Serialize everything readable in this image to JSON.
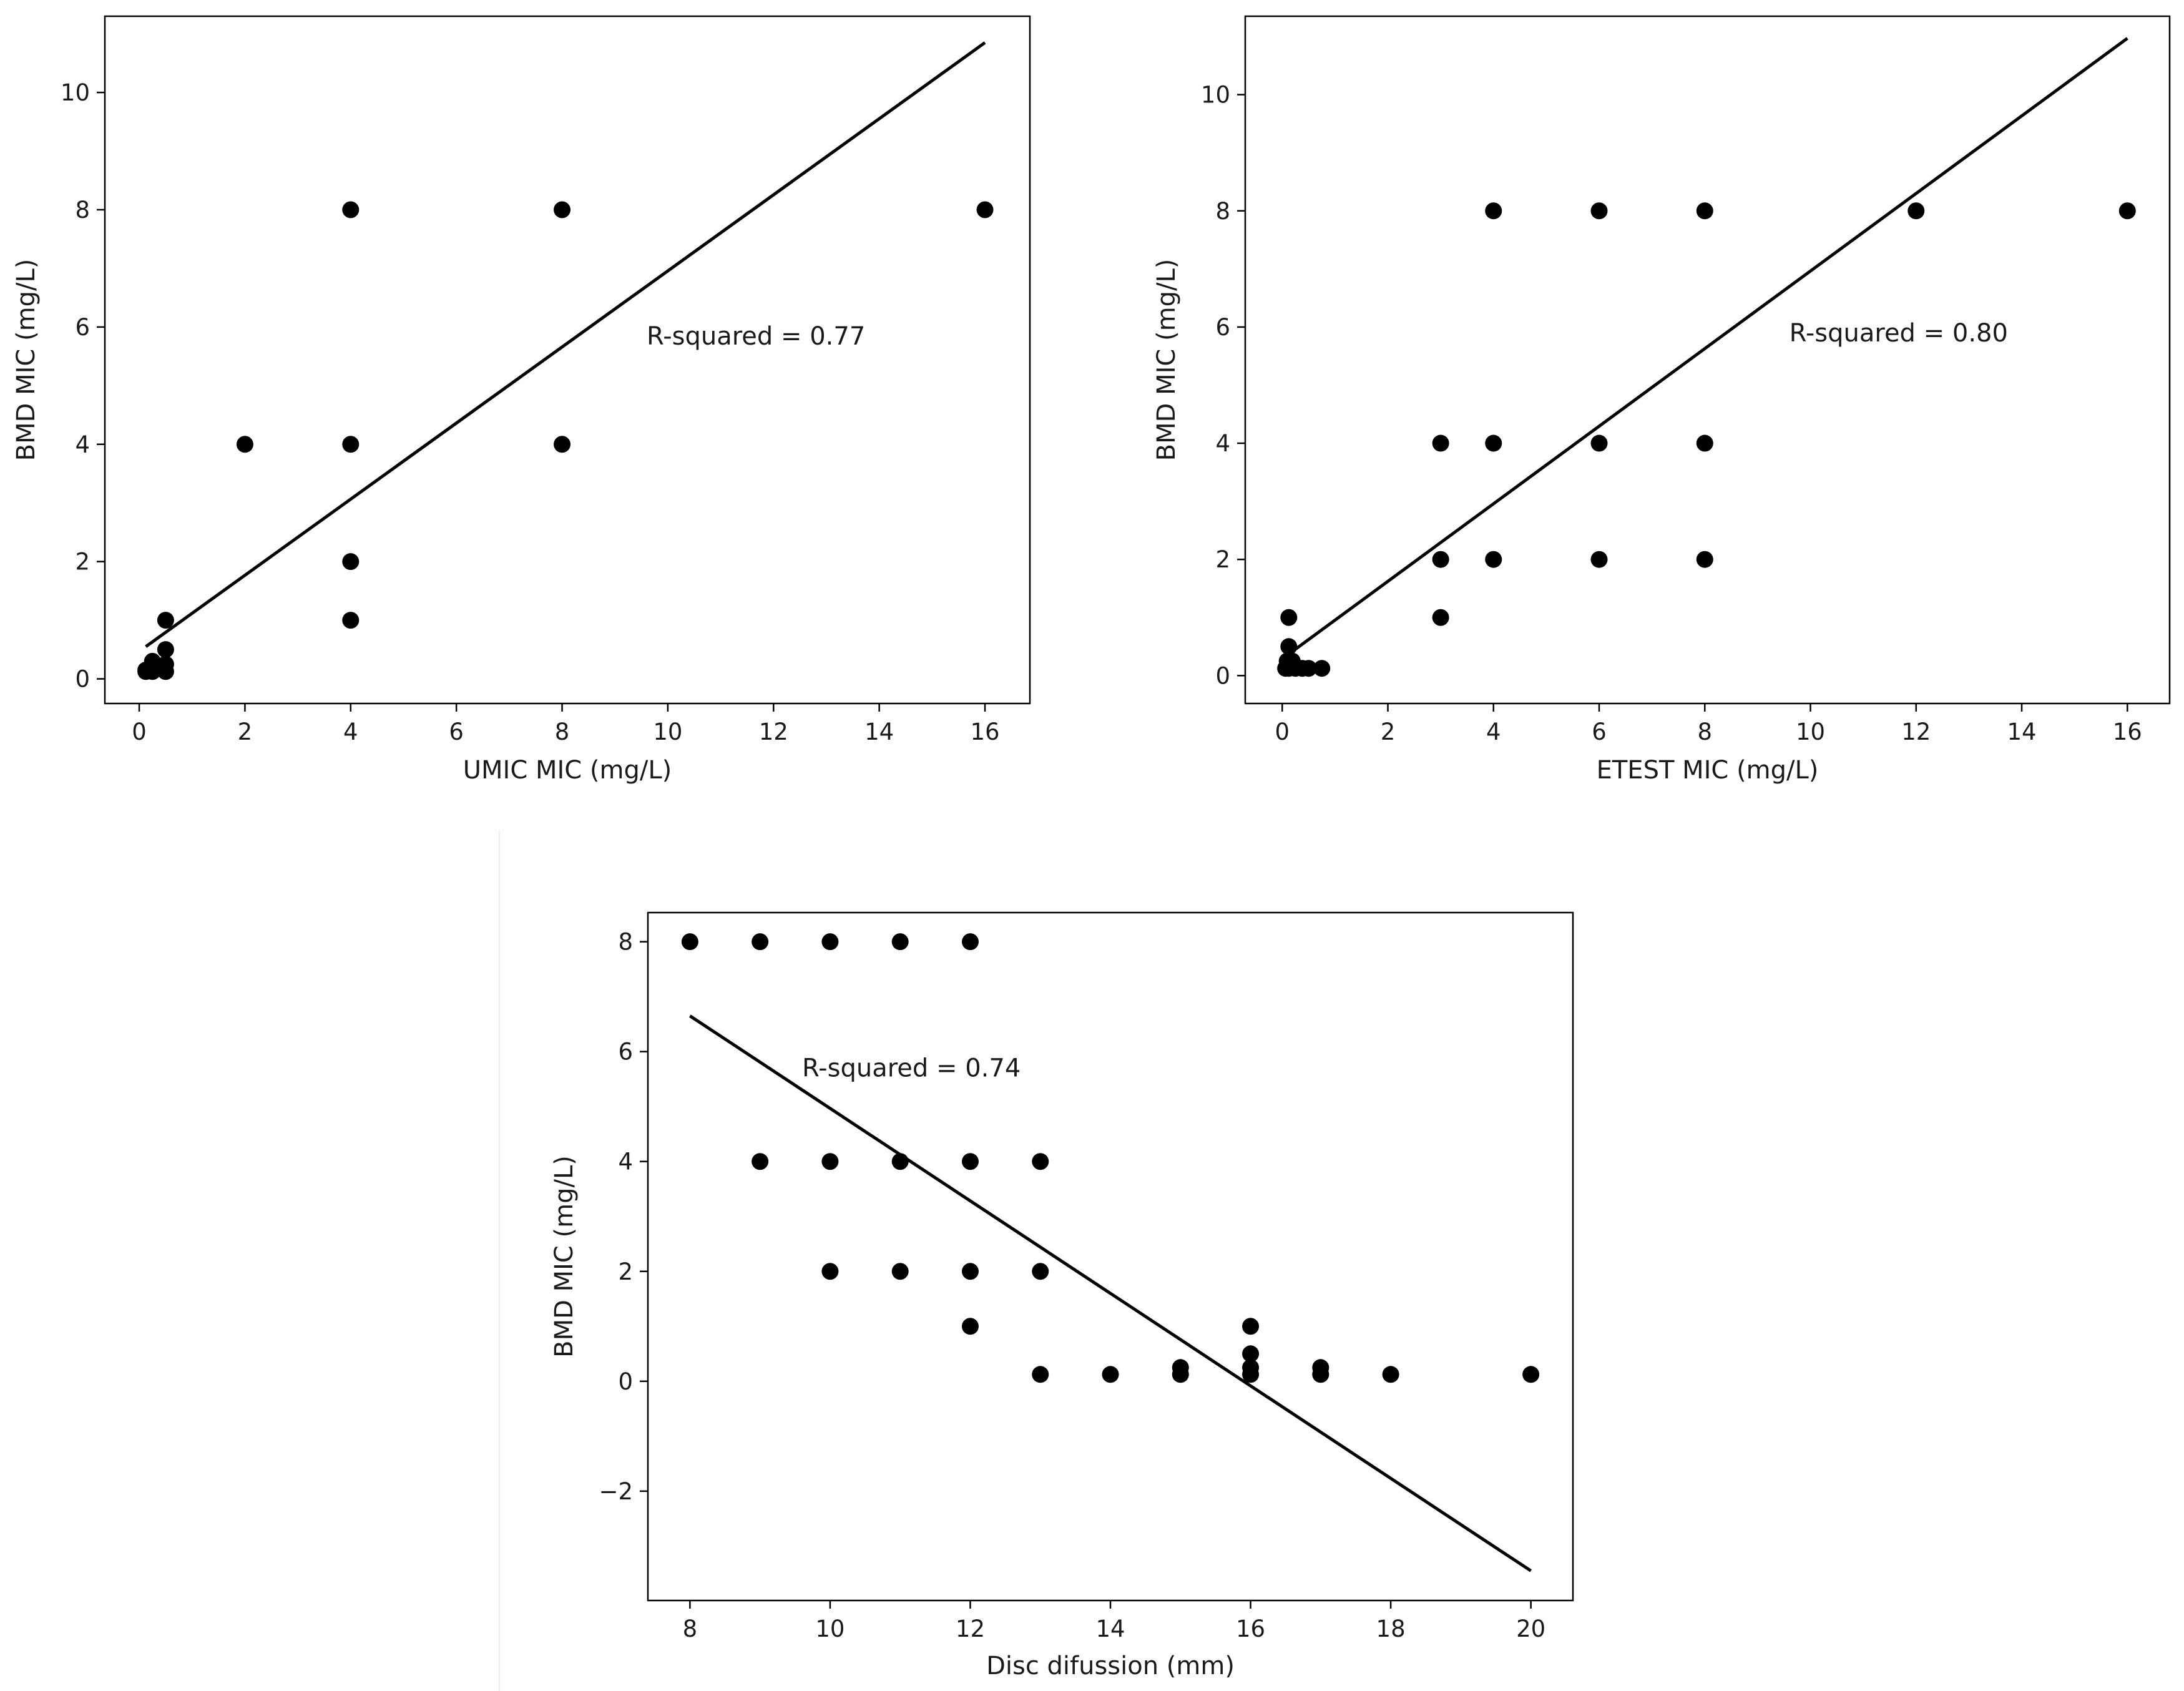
{
  "chart_data": [
    {
      "type": "scatter",
      "title": "",
      "xlabel": "UMIC MIC (mg/L)",
      "ylabel": "BMD MIC (mg/L)",
      "xlim": [
        -0.65,
        16.85
      ],
      "ylim": [
        -0.42,
        11.3
      ],
      "xticks": [
        0,
        2,
        4,
        6,
        8,
        10,
        12,
        14,
        16
      ],
      "yticks": [
        0,
        2,
        4,
        6,
        8,
        10
      ],
      "annotation": "R-squared = 0.77",
      "annotation_at": [
        9.6,
        5.7
      ],
      "regression": {
        "x": [
          0.125,
          16
        ],
        "y": [
          0.55,
          10.85
        ]
      },
      "points": [
        [
          0.125,
          0.125
        ],
        [
          0.125,
          0.15
        ],
        [
          0.25,
          0.125
        ],
        [
          0.25,
          0.25
        ],
        [
          0.25,
          0.3
        ],
        [
          0.5,
          0.125
        ],
        [
          0.5,
          0.25
        ],
        [
          0.5,
          0.5
        ],
        [
          0.5,
          1
        ],
        [
          2,
          4
        ],
        [
          4,
          8
        ],
        [
          4,
          4
        ],
        [
          4,
          2
        ],
        [
          4,
          1
        ],
        [
          8,
          8
        ],
        [
          8,
          4
        ],
        [
          16,
          8
        ]
      ]
    },
    {
      "type": "scatter",
      "title": "",
      "xlabel": "ETEST MIC (mg/L)",
      "ylabel": "BMD MIC (mg/L)",
      "xlim": [
        -0.7,
        16.8
      ],
      "ylim": [
        -0.48,
        11.35
      ],
      "xticks": [
        0,
        2,
        4,
        6,
        8,
        10,
        12,
        14,
        16
      ],
      "yticks": [
        0,
        2,
        4,
        6,
        8,
        10
      ],
      "annotation": "R-squared = 0.80",
      "annotation_at": [
        9.6,
        5.75
      ],
      "regression": {
        "x": [
          0.094,
          16
        ],
        "y": [
          0.35,
          10.97
        ]
      },
      "points": [
        [
          0.064,
          0.125
        ],
        [
          0.094,
          0.25
        ],
        [
          0.125,
          0.125
        ],
        [
          0.125,
          0.5
        ],
        [
          0.125,
          1
        ],
        [
          0.19,
          0.25
        ],
        [
          0.25,
          0.125
        ],
        [
          0.38,
          0.125
        ],
        [
          0.5,
          0.125
        ],
        [
          0.75,
          0.125
        ],
        [
          3,
          4
        ],
        [
          3,
          2
        ],
        [
          3,
          1
        ],
        [
          4,
          8
        ],
        [
          4,
          4
        ],
        [
          4,
          2
        ],
        [
          6,
          8
        ],
        [
          6,
          4
        ],
        [
          6,
          2
        ],
        [
          8,
          8
        ],
        [
          8,
          4
        ],
        [
          8,
          2
        ],
        [
          12,
          8
        ],
        [
          16,
          8
        ]
      ]
    },
    {
      "type": "scatter",
      "title": "",
      "xlabel": "Disc difussion (mm)",
      "ylabel": "BMD MIC (mg/L)",
      "xlim": [
        7.4,
        20.6
      ],
      "ylim": [
        -3.99,
        8.53
      ],
      "xticks": [
        8,
        10,
        12,
        14,
        16,
        18,
        20
      ],
      "yticks": [
        -2,
        0,
        2,
        4,
        6,
        8
      ],
      "annotation": "R-squared = 0.74",
      "annotation_at": [
        9.6,
        5.55
      ],
      "regression": {
        "x": [
          8,
          20
        ],
        "y": [
          6.65,
          -3.45
        ]
      },
      "points": [
        [
          8,
          8
        ],
        [
          9,
          8
        ],
        [
          10,
          8
        ],
        [
          11,
          8
        ],
        [
          12,
          8
        ],
        [
          9,
          4
        ],
        [
          10,
          4
        ],
        [
          11,
          4
        ],
        [
          12,
          4
        ],
        [
          13,
          4
        ],
        [
          10,
          2
        ],
        [
          11,
          2
        ],
        [
          12,
          2
        ],
        [
          13,
          2
        ],
        [
          12,
          1
        ],
        [
          13,
          0.125
        ],
        [
          14,
          0.125
        ],
        [
          15,
          0.125
        ],
        [
          15,
          0.25
        ],
        [
          16,
          1
        ],
        [
          16,
          0.5
        ],
        [
          16,
          0.25
        ],
        [
          16,
          0.125
        ],
        [
          17,
          0.125
        ],
        [
          17,
          0.25
        ],
        [
          18,
          0.125
        ],
        [
          20,
          0.125
        ]
      ]
    }
  ]
}
